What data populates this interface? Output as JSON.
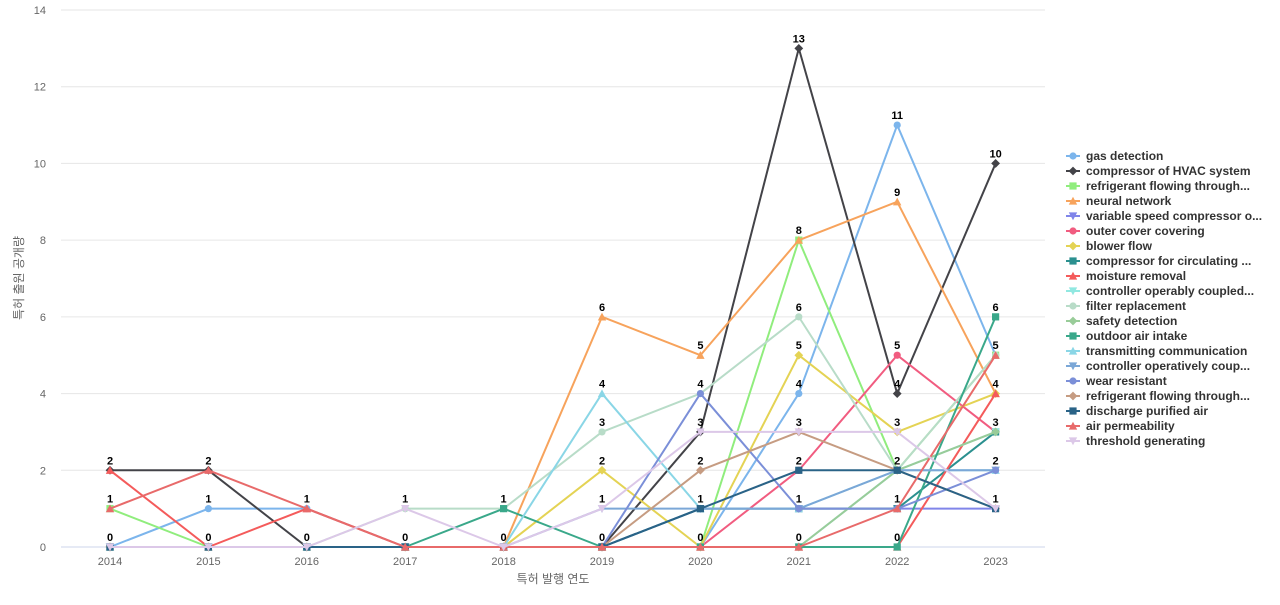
{
  "chart_data": {
    "type": "line",
    "title": "",
    "xlabel": "특허 발행 연도",
    "ylabel": "특허 출원 공개량",
    "categories": [
      "2014",
      "2015",
      "2016",
      "2017",
      "2018",
      "2019",
      "2020",
      "2021",
      "2022",
      "2023"
    ],
    "ylim": [
      0,
      14
    ],
    "yticks": [
      0,
      2,
      4,
      6,
      8,
      10,
      12,
      14
    ],
    "grid": "horizontal",
    "legend": "right",
    "series": [
      {
        "name": "gas detection",
        "color": "#7cb5ec",
        "marker": "circle",
        "values": [
          0,
          1,
          1,
          0,
          0,
          0,
          0,
          4,
          11,
          5
        ]
      },
      {
        "name": "compressor of HVAC system",
        "color": "#434348",
        "marker": "diamond",
        "values": [
          2,
          2,
          0,
          0,
          0,
          0,
          3,
          13,
          4,
          10
        ]
      },
      {
        "name": "refrigerant flowing through...",
        "color": "#90ed7d",
        "marker": "square",
        "values": [
          1,
          0,
          0,
          0,
          0,
          0,
          0,
          8,
          2,
          5
        ]
      },
      {
        "name": "neural network",
        "color": "#f7a35c",
        "marker": "triangle",
        "values": [
          0,
          0,
          0,
          0,
          0,
          6,
          5,
          8,
          9,
          4
        ]
      },
      {
        "name": "variable speed compressor o...",
        "color": "#8085e9",
        "marker": "triangle-down",
        "values": [
          0,
          0,
          0,
          0,
          0,
          0,
          1,
          1,
          1,
          1
        ]
      },
      {
        "name": "outer cover covering",
        "color": "#f15c80",
        "marker": "circle",
        "values": [
          0,
          0,
          0,
          0,
          0,
          0,
          0,
          2,
          5,
          3
        ]
      },
      {
        "name": "blower flow",
        "color": "#e4d354",
        "marker": "diamond",
        "values": [
          0,
          0,
          0,
          0,
          0,
          2,
          0,
          5,
          3,
          4
        ]
      },
      {
        "name": "compressor for circulating ...",
        "color": "#2b908f",
        "marker": "square",
        "values": [
          0,
          0,
          0,
          0,
          0,
          0,
          1,
          1,
          1,
          3
        ]
      },
      {
        "name": "moisture removal",
        "color": "#f45b5b",
        "marker": "triangle",
        "values": [
          2,
          0,
          1,
          0,
          0,
          0,
          0,
          0,
          0,
          4
        ]
      },
      {
        "name": "controller operably coupled...",
        "color": "#91e8e1",
        "marker": "triangle-down",
        "values": [
          0,
          0,
          0,
          0,
          0,
          0,
          0,
          0,
          2,
          3
        ]
      },
      {
        "name": "filter replacement",
        "color": "#b8dcc8",
        "marker": "circle",
        "values": [
          0,
          0,
          0,
          1,
          1,
          3,
          4,
          6,
          2,
          5
        ]
      },
      {
        "name": "safety detection",
        "color": "#99cc99",
        "marker": "diamond",
        "values": [
          0,
          0,
          0,
          0,
          0,
          0,
          0,
          0,
          2,
          3
        ]
      },
      {
        "name": "outdoor air intake",
        "color": "#3aa88a",
        "marker": "square",
        "values": [
          0,
          0,
          0,
          0,
          1,
          0,
          0,
          0,
          0,
          6
        ]
      },
      {
        "name": "transmitting communication",
        "color": "#8ad6e6",
        "marker": "triangle",
        "values": [
          0,
          0,
          0,
          0,
          0,
          4,
          1,
          1,
          2,
          2
        ]
      },
      {
        "name": "controller operatively coup...",
        "color": "#7ba7d7",
        "marker": "triangle-down",
        "values": [
          0,
          0,
          0,
          0,
          0,
          1,
          1,
          1,
          2,
          2
        ]
      },
      {
        "name": "wear resistant",
        "color": "#7b8fd8",
        "marker": "circle",
        "values": [
          0,
          0,
          0,
          0,
          0,
          0,
          4,
          1,
          1,
          2
        ]
      },
      {
        "name": "refrigerant flowing through...",
        "color": "#c69c82",
        "marker": "diamond",
        "values": [
          0,
          0,
          0,
          0,
          0,
          0,
          2,
          3,
          2,
          1
        ]
      },
      {
        "name": "discharge purified air",
        "color": "#2a6387",
        "marker": "square",
        "values": [
          0,
          0,
          0,
          0,
          0,
          0,
          1,
          2,
          2,
          1
        ]
      },
      {
        "name": "air permeability",
        "color": "#e86a6a",
        "marker": "triangle",
        "values": [
          1,
          2,
          1,
          0,
          0,
          0,
          0,
          0,
          1,
          5
        ]
      },
      {
        "name": "threshold generating",
        "color": "#dcc8e8",
        "marker": "triangle-down",
        "values": [
          0,
          0,
          0,
          1,
          0,
          1,
          3,
          3,
          3,
          1
        ]
      }
    ],
    "data_labels": [
      {
        "x": "2014",
        "text": "2",
        "value": 2
      },
      {
        "x": "2014",
        "text": "1",
        "value": 1
      },
      {
        "x": "2014",
        "text": "0",
        "value": 0
      },
      {
        "x": "2015",
        "text": "2",
        "value": 2
      },
      {
        "x": "2015",
        "text": "1",
        "value": 1
      },
      {
        "x": "2015",
        "text": "0",
        "value": 0
      },
      {
        "x": "2016",
        "text": "1",
        "value": 1
      },
      {
        "x": "2016",
        "text": "0",
        "value": 0
      },
      {
        "x": "2017",
        "text": "1",
        "value": 1
      },
      {
        "x": "2017",
        "text": "0",
        "value": 0
      },
      {
        "x": "2018",
        "text": "1",
        "value": 1
      },
      {
        "x": "2018",
        "text": "0",
        "value": 0
      },
      {
        "x": "2019",
        "text": "6",
        "value": 6
      },
      {
        "x": "2019",
        "text": "4",
        "value": 4
      },
      {
        "x": "2019",
        "text": "3",
        "value": 3
      },
      {
        "x": "2019",
        "text": "2",
        "value": 2
      },
      {
        "x": "2019",
        "text": "1",
        "value": 1
      },
      {
        "x": "2019",
        "text": "0",
        "value": 0
      },
      {
        "x": "2020",
        "text": "5",
        "value": 5
      },
      {
        "x": "2020",
        "text": "4",
        "value": 4
      },
      {
        "x": "2020",
        "text": "3",
        "value": 3
      },
      {
        "x": "2020",
        "text": "2",
        "value": 2
      },
      {
        "x": "2020",
        "text": "1",
        "value": 1
      },
      {
        "x": "2020",
        "text": "0",
        "value": 0
      },
      {
        "x": "2021",
        "text": "13",
        "value": 13
      },
      {
        "x": "2021",
        "text": "8",
        "value": 8
      },
      {
        "x": "2021",
        "text": "6",
        "value": 6
      },
      {
        "x": "2021",
        "text": "5",
        "value": 5
      },
      {
        "x": "2021",
        "text": "4",
        "value": 4
      },
      {
        "x": "2021",
        "text": "3",
        "value": 3
      },
      {
        "x": "2021",
        "text": "2",
        "value": 2
      },
      {
        "x": "2021",
        "text": "1",
        "value": 1
      },
      {
        "x": "2021",
        "text": "0",
        "value": 0
      },
      {
        "x": "2022",
        "text": "11",
        "value": 11
      },
      {
        "x": "2022",
        "text": "9",
        "value": 9
      },
      {
        "x": "2022",
        "text": "5",
        "value": 5
      },
      {
        "x": "2022",
        "text": "4",
        "value": 4
      },
      {
        "x": "2022",
        "text": "3",
        "value": 3
      },
      {
        "x": "2022",
        "text": "2",
        "value": 2
      },
      {
        "x": "2022",
        "text": "1",
        "value": 1
      },
      {
        "x": "2022",
        "text": "0",
        "value": 0
      },
      {
        "x": "2023",
        "text": "10",
        "value": 10
      },
      {
        "x": "2023",
        "text": "6",
        "value": 6
      },
      {
        "x": "2023",
        "text": "5",
        "value": 5
      },
      {
        "x": "2023",
        "text": "4",
        "value": 4
      },
      {
        "x": "2023",
        "text": "3",
        "value": 3
      },
      {
        "x": "2023",
        "text": "2",
        "value": 2
      },
      {
        "x": "2023",
        "text": "1",
        "value": 1
      }
    ]
  }
}
